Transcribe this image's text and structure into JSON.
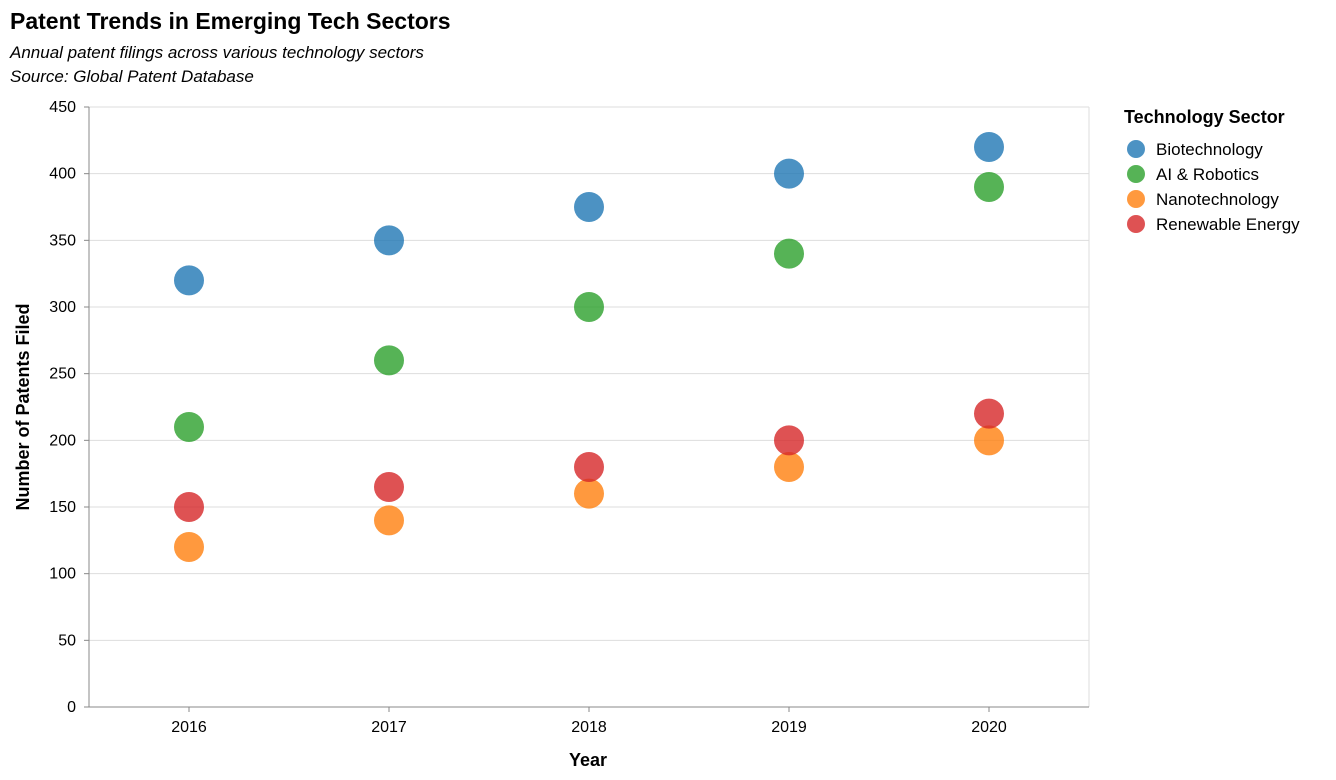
{
  "chart_data": {
    "type": "scatter",
    "title": "Patent Trends in Emerging Tech Sectors",
    "subtitle": [
      "Annual patent filings across various technology sectors",
      "Source: Global Patent Database"
    ],
    "xlabel": "Year",
    "ylabel": "Number of Patents Filed",
    "x": [
      "2016",
      "2017",
      "2018",
      "2019",
      "2020"
    ],
    "ylim": [
      0,
      450
    ],
    "yticks": [
      0,
      50,
      100,
      150,
      200,
      250,
      300,
      350,
      400,
      450
    ],
    "grid": true,
    "legend": {
      "title": "Technology Sector",
      "placement": "right"
    },
    "series": [
      {
        "name": "Biotechnology",
        "color": "#1f77b4",
        "values": [
          320,
          350,
          375,
          400,
          420
        ]
      },
      {
        "name": "AI & Robotics",
        "color": "#2ca02c",
        "values": [
          210,
          260,
          300,
          340,
          390
        ]
      },
      {
        "name": "Nanotechnology",
        "color": "#ff7f0e",
        "values": [
          120,
          140,
          160,
          180,
          200
        ]
      },
      {
        "name": "Renewable Energy",
        "color": "#d62728",
        "values": [
          150,
          165,
          180,
          200,
          220
        ]
      }
    ]
  }
}
